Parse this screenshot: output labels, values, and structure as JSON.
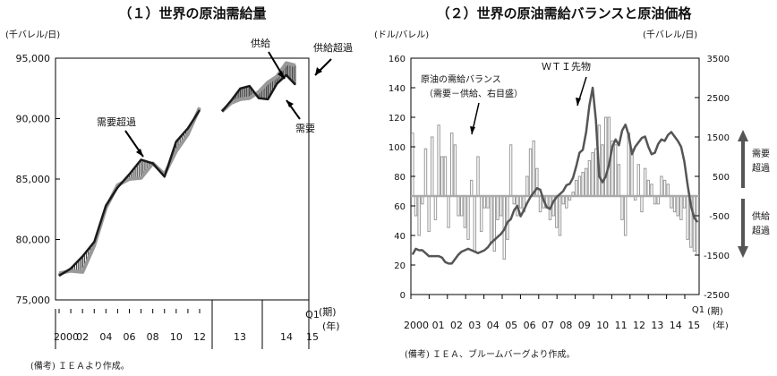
{
  "chart_data": [
    {
      "type": "line",
      "title": "（１）世界の原油需給量",
      "ylabel": "(千バレル/日)",
      "ylim": [
        75000,
        95000
      ],
      "y_ticks": [
        "75,000",
        "80,000",
        "85,000",
        "90,000",
        "95,000"
      ],
      "x_ticks": [
        "2000",
        "02",
        "04",
        "06",
        "08",
        "10",
        "12",
        "13",
        "14",
        "15"
      ],
      "x_extra": [
        "Q1"
      ],
      "x_unit_labels": [
        "(期)",
        "(年)"
      ],
      "series": [
        {
          "name": "需要",
          "color": "#1a1a1a",
          "annual_x": [
            2000,
            2001,
            2002,
            2003,
            2004,
            2005,
            2006,
            2007,
            2008,
            2009,
            2010,
            2011,
            2012
          ],
          "annual_y": [
            77000,
            77600,
            78600,
            79800,
            82800,
            84300,
            85400,
            86600,
            86300,
            85200,
            88100,
            89200,
            90700
          ],
          "quarterly_x": [
            1,
            2,
            3,
            4,
            5,
            6,
            7,
            8,
            9
          ],
          "quarterly_y": [
            90600,
            91500,
            92500,
            92700,
            91700,
            91600,
            92900,
            93600,
            92800
          ]
        },
        {
          "name": "供給",
          "color": "#999999",
          "annual_x": [
            2000,
            2001,
            2002,
            2003,
            2004,
            2005,
            2006,
            2007,
            2008,
            2009,
            2010,
            2011,
            2012
          ],
          "annual_y": [
            77200,
            77400,
            77300,
            79500,
            82600,
            84500,
            85000,
            85100,
            86300,
            85400,
            87300,
            88700,
            90900
          ],
          "quarterly_x": [
            1,
            2,
            3,
            4,
            5,
            6,
            7,
            8,
            9
          ],
          "quarterly_y": [
            90600,
            91300,
            91600,
            91700,
            92200,
            93000,
            93500,
            94600,
            94400
          ]
        }
      ],
      "annotations": [
        "需要超過",
        "供給",
        "供給超過",
        "需要"
      ],
      "note": "(備考) ＩＥＡより作成。"
    },
    {
      "type": "bar+line",
      "title": "（２）世界の原油需給バランスと原油価格",
      "ylabel_left": "(ドル/バレル)",
      "ylabel_right": "(千バレル/日)",
      "ylim_left": [
        0,
        160
      ],
      "ylim_right": [
        -2500,
        3500
      ],
      "y_ticks_left": [
        "0",
        "20",
        "40",
        "60",
        "80",
        "100",
        "120",
        "140",
        "160"
      ],
      "y_ticks_right": [
        "-2500",
        "-1500",
        "-500",
        "500",
        "1500",
        "2500",
        "3500"
      ],
      "x_ticks": [
        "2000",
        "01",
        "02",
        "03",
        "04",
        "05",
        "06",
        "07",
        "08",
        "09",
        "10",
        "11",
        "12",
        "13",
        "14",
        "15"
      ],
      "x_extra": [
        "Q1"
      ],
      "x_unit_labels": [
        "(期)",
        "(年)"
      ],
      "balance_series": {
        "name": "原油の需給バランス（需要－供給、右目盛）",
        "unit": "千バレル/日",
        "values": [
          1600,
          -500,
          -1000,
          -200,
          1200,
          -900,
          1500,
          -600,
          1800,
          1000,
          1000,
          -800,
          1600,
          1300,
          -500,
          -500,
          -800,
          -1100,
          400,
          -1400,
          1000,
          -900,
          -300,
          -300,
          -1200,
          -1400,
          -600,
          -500,
          -1600,
          -1100,
          1300,
          -200,
          -500,
          -300,
          -400,
          500,
          1200,
          1400,
          700,
          -400,
          -300,
          -300,
          -600,
          -500,
          -800,
          -1000,
          -200,
          -300,
          -100,
          100,
          400,
          500,
          600,
          700,
          900,
          1100,
          1200,
          1800,
          1300,
          2000,
          2000,
          1400,
          1300,
          800,
          -600,
          -1000,
          1600,
          1200,
          -100,
          800,
          -400,
          700,
          400,
          300,
          -200,
          -200,
          500,
          400,
          300,
          -300,
          -400,
          -500,
          -600,
          -300,
          -1100,
          -1300,
          -1400,
          -1500
        ]
      },
      "wti_series": {
        "name": "ＷＴＩ先物",
        "unit": "ドル/バレル",
        "values": [
          27,
          31,
          30,
          30,
          28,
          26,
          26,
          26,
          26,
          25,
          22,
          21,
          21,
          24,
          27,
          29,
          30,
          31,
          30,
          29,
          28,
          29,
          30,
          32,
          35,
          37,
          39,
          41,
          44,
          49,
          51,
          57,
          60,
          53,
          57,
          62,
          66,
          69,
          72,
          71,
          64,
          59,
          58,
          63,
          66,
          68,
          70,
          74,
          75,
          79,
          87,
          96,
          98,
          110,
          128,
          140,
          118,
          80,
          76,
          80,
          88,
          100,
          105,
          101,
          111,
          115,
          108,
          95,
          100,
          103,
          106,
          107,
          100,
          95,
          96,
          102,
          105,
          104,
          108,
          110,
          107,
          104,
          100,
          90,
          74,
          60,
          52,
          49
        ]
      },
      "annotations": [
        "ＷＴＩ先物",
        "原油の需給バランス",
        "（需要－供給、右目盛）",
        "需要",
        "超過",
        "供給",
        "超過"
      ],
      "note": "(備考) ＩＥＡ、ブルームバーグより作成。"
    }
  ]
}
